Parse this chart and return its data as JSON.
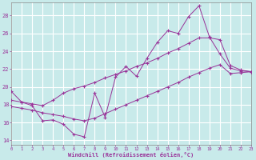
{
  "bg_color": "#c8eaea",
  "grid_color": "#aacccc",
  "line_color": "#993399",
  "xlim": [
    0,
    23
  ],
  "ylim": [
    13.5,
    29.5
  ],
  "xticks": [
    0,
    1,
    2,
    3,
    4,
    5,
    6,
    7,
    8,
    9,
    10,
    11,
    12,
    13,
    14,
    15,
    16,
    17,
    18,
    19,
    20,
    21,
    22,
    23
  ],
  "yticks": [
    14,
    16,
    18,
    20,
    22,
    24,
    26,
    28
  ],
  "xlabel": "Windchill (Refroidissement éolien,°C)",
  "line1_x": [
    0,
    1,
    2,
    3,
    4,
    5,
    6,
    7,
    8,
    9,
    10,
    11,
    12,
    13,
    14,
    15,
    16,
    17,
    18,
    19,
    20,
    21,
    22,
    23
  ],
  "line1_y": [
    19.5,
    18.3,
    17.9,
    16.2,
    16.3,
    15.8,
    14.7,
    14.4,
    19.3,
    16.6,
    21.1,
    22.3,
    21.2,
    23.2,
    25.0,
    26.3,
    26.0,
    27.9,
    29.1,
    25.6,
    23.7,
    22.1,
    21.8,
    21.7
  ],
  "line2_x": [
    0,
    1,
    2,
    3,
    4,
    5,
    6,
    7,
    8,
    9,
    10,
    11,
    12,
    13,
    14,
    15,
    16,
    17,
    18,
    19,
    20,
    21,
    22,
    23
  ],
  "line2_y": [
    18.5,
    18.3,
    18.1,
    17.9,
    18.5,
    19.3,
    19.8,
    20.1,
    20.5,
    21.0,
    21.4,
    21.8,
    22.3,
    22.7,
    23.2,
    23.8,
    24.3,
    24.9,
    25.5,
    25.5,
    25.3,
    22.4,
    21.9,
    21.7
  ],
  "line3_x": [
    0,
    1,
    2,
    3,
    4,
    5,
    6,
    7,
    8,
    9,
    10,
    11,
    12,
    13,
    14,
    15,
    16,
    17,
    18,
    19,
    20,
    21,
    22,
    23
  ],
  "line3_y": [
    17.8,
    17.6,
    17.4,
    17.1,
    16.9,
    16.7,
    16.4,
    16.2,
    16.5,
    17.0,
    17.5,
    18.0,
    18.5,
    19.0,
    19.5,
    20.0,
    20.5,
    21.1,
    21.6,
    22.1,
    22.5,
    21.5,
    21.6,
    21.7
  ]
}
